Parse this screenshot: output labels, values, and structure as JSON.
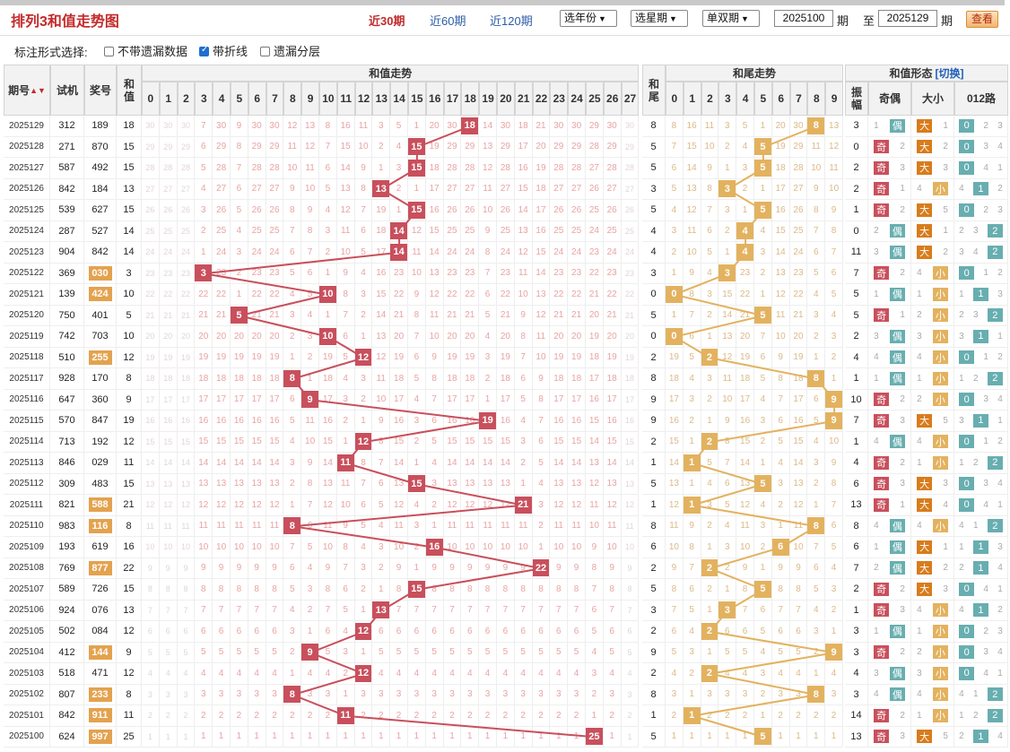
{
  "title": "排列3和值走势图",
  "ranges": [
    {
      "label": "近30期",
      "active": true
    },
    {
      "label": "近60期",
      "active": false
    },
    {
      "label": "近120期",
      "active": false
    }
  ],
  "selects": {
    "year": "选年份",
    "week": "选星期",
    "parity": "单双期"
  },
  "period_from": "2025100",
  "period_sep1": "期",
  "period_to_label": "至",
  "period_to": "2025129",
  "period_sep2": "期",
  "query_label": "查看",
  "options": {
    "label": "标注形式选择:",
    "items": [
      {
        "label": "不带遗漏数据",
        "checked": false
      },
      {
        "label": "带折线",
        "checked": true
      },
      {
        "label": "遗漏分层",
        "checked": false
      }
    ]
  },
  "headers": {
    "period": "期号",
    "sort_icon": "▲▼",
    "test": "试机",
    "draw": "奖号",
    "sum": "和值",
    "sum_trend": "和值走势",
    "tail": "和尾",
    "tail_trend": "和尾走势",
    "form": "和值形态",
    "switch": "[切换]",
    "amp": "振幅",
    "parity": "奇偶",
    "size": "大小",
    "route": "012路",
    "sum_numbers": [
      "0",
      "1",
      "2",
      "3",
      "4",
      "5",
      "6",
      "7",
      "8",
      "9",
      "10",
      "11",
      "12",
      "13",
      "14",
      "15",
      "16",
      "17",
      "18",
      "19",
      "20",
      "21",
      "22",
      "23",
      "24",
      "25",
      "26",
      "27"
    ],
    "tail_numbers": [
      "0",
      "1",
      "2",
      "3",
      "4",
      "5",
      "6",
      "7",
      "8",
      "9"
    ]
  },
  "colors": {
    "red_hit": "#c94f5c",
    "orange_hit": "#e3b25f",
    "badge": "#e4a24e",
    "title": "#c32a2a",
    "link": "#2a5ca8"
  },
  "rows": [
    {
      "period": "2025129",
      "test": "312",
      "draw": "189",
      "badge": false,
      "sum": 18,
      "tail": 8,
      "amp": "3",
      "parity": "偶",
      "size": "大",
      "route": 0
    },
    {
      "period": "2025128",
      "test": "271",
      "draw": "870",
      "badge": false,
      "sum": 15,
      "tail": 5,
      "amp": "0",
      "parity": "奇",
      "size": "大",
      "route": 0
    },
    {
      "period": "2025127",
      "test": "587",
      "draw": "492",
      "badge": false,
      "sum": 15,
      "tail": 5,
      "amp": "2",
      "parity": "奇",
      "size": "大",
      "route": 0
    },
    {
      "period": "2025126",
      "test": "842",
      "draw": "184",
      "badge": false,
      "sum": 13,
      "tail": 3,
      "amp": "2",
      "parity": "奇",
      "size": "小",
      "route": 1
    },
    {
      "period": "2025125",
      "test": "539",
      "draw": "627",
      "badge": false,
      "sum": 15,
      "tail": 5,
      "amp": "1",
      "parity": "奇",
      "size": "大",
      "route": 0
    },
    {
      "period": "2025124",
      "test": "287",
      "draw": "527",
      "badge": false,
      "sum": 14,
      "tail": 4,
      "amp": "0",
      "parity": "偶",
      "size": "大",
      "route": 2
    },
    {
      "period": "2025123",
      "test": "904",
      "draw": "842",
      "badge": false,
      "sum": 14,
      "tail": 4,
      "amp": "11",
      "parity": "偶",
      "size": "大",
      "route": 2
    },
    {
      "period": "2025122",
      "test": "369",
      "draw": "030",
      "badge": true,
      "sum": 3,
      "tail": 3,
      "amp": "7",
      "parity": "奇",
      "size": "小",
      "route": 0
    },
    {
      "period": "2025121",
      "test": "139",
      "draw": "424",
      "badge": true,
      "sum": 10,
      "tail": 0,
      "amp": "5",
      "parity": "偶",
      "size": "小",
      "route": 1
    },
    {
      "period": "2025120",
      "test": "750",
      "draw": "401",
      "badge": false,
      "sum": 5,
      "tail": 5,
      "amp": "5",
      "parity": "奇",
      "size": "小",
      "route": 2
    },
    {
      "period": "2025119",
      "test": "742",
      "draw": "703",
      "badge": false,
      "sum": 10,
      "tail": 0,
      "amp": "2",
      "parity": "偶",
      "size": "小",
      "route": 1
    },
    {
      "period": "2025118",
      "test": "510",
      "draw": "255",
      "badge": true,
      "sum": 12,
      "tail": 2,
      "amp": "4",
      "parity": "偶",
      "size": "小",
      "route": 0
    },
    {
      "period": "2025117",
      "test": "928",
      "draw": "170",
      "badge": false,
      "sum": 8,
      "tail": 8,
      "amp": "1",
      "parity": "偶",
      "size": "小",
      "route": 2
    },
    {
      "period": "2025116",
      "test": "647",
      "draw": "360",
      "badge": false,
      "sum": 9,
      "tail": 9,
      "amp": "10",
      "parity": "奇",
      "size": "小",
      "route": 0
    },
    {
      "period": "2025115",
      "test": "570",
      "draw": "847",
      "badge": false,
      "sum": 19,
      "tail": 9,
      "amp": "7",
      "parity": "奇",
      "size": "大",
      "route": 1
    },
    {
      "period": "2025114",
      "test": "713",
      "draw": "192",
      "badge": false,
      "sum": 12,
      "tail": 2,
      "amp": "1",
      "parity": "偶",
      "size": "小",
      "route": 0
    },
    {
      "period": "2025113",
      "test": "846",
      "draw": "029",
      "badge": false,
      "sum": 11,
      "tail": 1,
      "amp": "4",
      "parity": "奇",
      "size": "小",
      "route": 2
    },
    {
      "period": "2025112",
      "test": "309",
      "draw": "483",
      "badge": false,
      "sum": 15,
      "tail": 5,
      "amp": "6",
      "parity": "奇",
      "size": "大",
      "route": 0
    },
    {
      "period": "2025111",
      "test": "821",
      "draw": "588",
      "badge": true,
      "sum": 21,
      "tail": 1,
      "amp": "13",
      "parity": "奇",
      "size": "大",
      "route": 0
    },
    {
      "period": "2025110",
      "test": "983",
      "draw": "116",
      "badge": true,
      "sum": 8,
      "tail": 8,
      "amp": "8",
      "parity": "偶",
      "size": "小",
      "route": 2
    },
    {
      "period": "2025109",
      "test": "193",
      "draw": "619",
      "badge": false,
      "sum": 16,
      "tail": 6,
      "amp": "6",
      "parity": "偶",
      "size": "大",
      "route": 1
    },
    {
      "period": "2025108",
      "test": "769",
      "draw": "877",
      "badge": true,
      "sum": 22,
      "tail": 2,
      "amp": "7",
      "parity": "偶",
      "size": "大",
      "route": 1
    },
    {
      "period": "2025107",
      "test": "589",
      "draw": "726",
      "badge": false,
      "sum": 15,
      "tail": 5,
      "amp": "2",
      "parity": "奇",
      "size": "大",
      "route": 0
    },
    {
      "period": "2025106",
      "test": "924",
      "draw": "076",
      "badge": false,
      "sum": 13,
      "tail": 3,
      "amp": "1",
      "parity": "奇",
      "size": "小",
      "route": 1
    },
    {
      "period": "2025105",
      "test": "502",
      "draw": "084",
      "badge": false,
      "sum": 12,
      "tail": 2,
      "amp": "3",
      "parity": "偶",
      "size": "小",
      "route": 0
    },
    {
      "period": "2025104",
      "test": "412",
      "draw": "144",
      "badge": true,
      "sum": 9,
      "tail": 9,
      "amp": "3",
      "parity": "奇",
      "size": "小",
      "route": 0
    },
    {
      "period": "2025103",
      "test": "518",
      "draw": "471",
      "badge": false,
      "sum": 12,
      "tail": 2,
      "amp": "4",
      "parity": "偶",
      "size": "小",
      "route": 0
    },
    {
      "period": "2025102",
      "test": "807",
      "draw": "233",
      "badge": true,
      "sum": 8,
      "tail": 8,
      "amp": "3",
      "parity": "偶",
      "size": "小",
      "route": 2
    },
    {
      "period": "2025101",
      "test": "842",
      "draw": "911",
      "badge": true,
      "sum": 11,
      "tail": 1,
      "amp": "14",
      "parity": "奇",
      "size": "小",
      "route": 2
    },
    {
      "period": "2025100",
      "test": "624",
      "draw": "997",
      "badge": true,
      "sum": 25,
      "tail": 5,
      "amp": "13",
      "parity": "奇",
      "size": "大",
      "route": 1
    }
  ]
}
